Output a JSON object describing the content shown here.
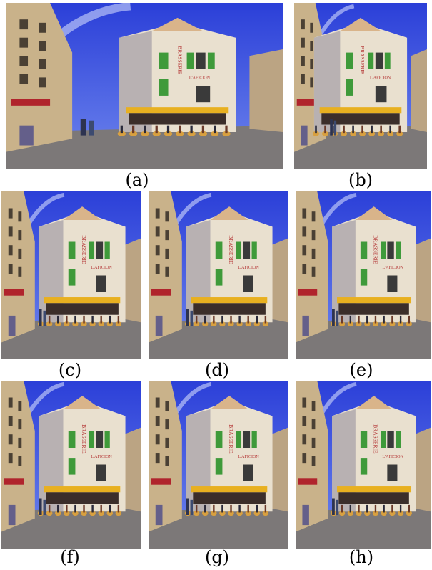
{
  "figure": {
    "panels": [
      {
        "id": "a",
        "caption": "(a)",
        "sign_top": "BRASSERIE",
        "sign_side": "L'AFICION"
      },
      {
        "id": "b",
        "caption": "(b)",
        "sign_top": "BRASSERIE",
        "sign_side": "L'AFICION"
      },
      {
        "id": "c",
        "caption": "(c)",
        "sign_top": "BRASSERIE",
        "sign_side": "L'AFICION"
      },
      {
        "id": "d",
        "caption": "(d)",
        "sign_top": "BRASSERIE",
        "sign_side": "L'AFICION"
      },
      {
        "id": "e",
        "caption": "(e)",
        "sign_top": "BRASSERIE",
        "sign_side": "L'AFICION"
      },
      {
        "id": "f",
        "caption": "(f)",
        "sign_top": "BRASSERIE",
        "sign_side": "L'AFICION"
      },
      {
        "id": "g",
        "caption": "(g)",
        "sign_top": "BRASSERIE",
        "sign_side": "L'AFICION"
      },
      {
        "id": "h",
        "caption": "(h)",
        "sign_top": "BRASSERIE",
        "sign_side": "L'AFICION"
      }
    ]
  },
  "colors": {
    "sky": "#2b3fd8",
    "sky_light": "#6e86ee",
    "facade": "#e9e0cf",
    "shadow": "#8f8a9a",
    "shutter": "#3f9a3a",
    "awning": "#e8b020",
    "awning_red": "#b0242c",
    "street": "#7c7878",
    "building_left": "#c9b28a",
    "sign_red": "#b23030"
  }
}
